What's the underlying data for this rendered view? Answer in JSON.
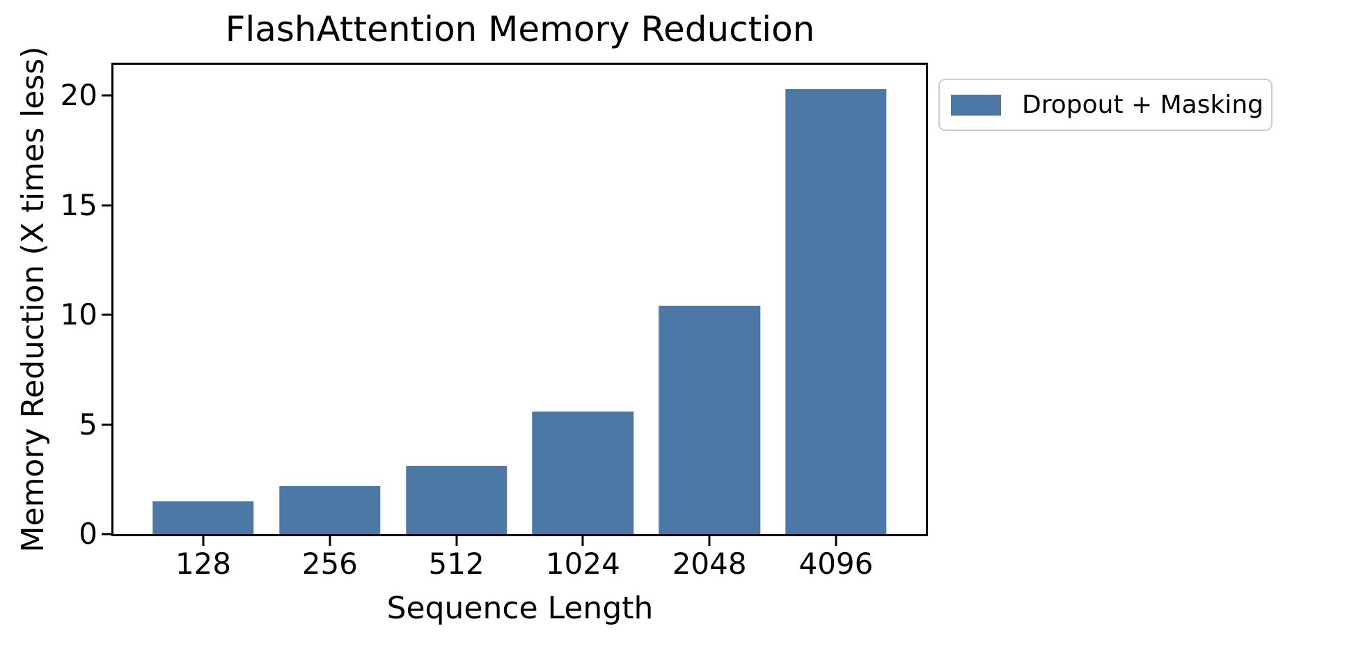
{
  "chart_data": {
    "type": "bar",
    "title": "FlashAttention Memory Reduction",
    "xlabel": "Sequence Length",
    "ylabel": "Memory Reduction (X times less)",
    "categories": [
      "128",
      "256",
      "512",
      "1024",
      "2048",
      "4096"
    ],
    "values": [
      1.5,
      2.2,
      3.1,
      5.6,
      10.4,
      20.3
    ],
    "series": [
      {
        "name": "Dropout + Masking",
        "values": [
          1.5,
          2.2,
          3.1,
          5.6,
          10.4,
          20.3
        ]
      }
    ],
    "yticks": [
      0,
      5,
      10,
      15,
      20
    ],
    "ylim": [
      0,
      21.4
    ],
    "xlim": [
      -0.71,
      5.71
    ],
    "bar_width": 0.8,
    "bar_color": "#4C78A8",
    "grid": false,
    "legend": {
      "label": "Dropout + Masking",
      "position": "upper-right-outside"
    }
  }
}
